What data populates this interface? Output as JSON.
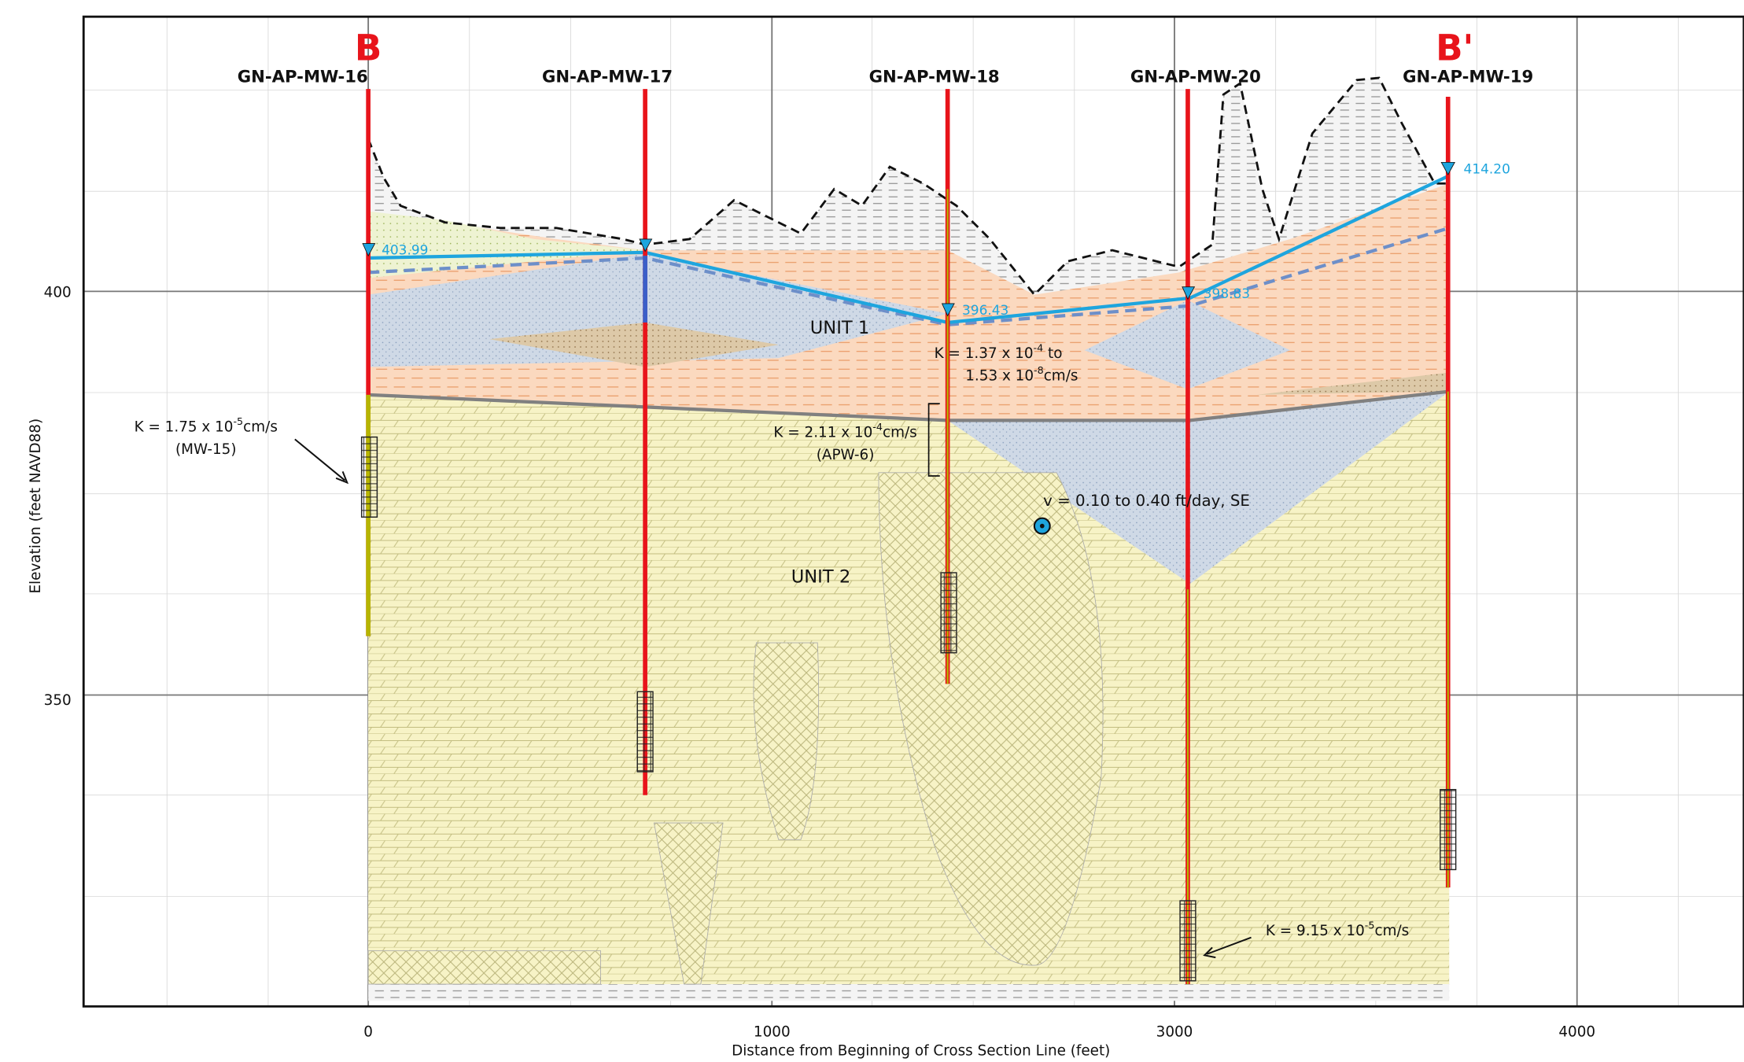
{
  "section": {
    "start_label": "B",
    "end_label": "B'"
  },
  "wells": [
    "GN-AP-MW-16",
    "GN-AP-MW-17",
    "GN-AP-MW-18",
    "GN-AP-MW-20",
    "GN-AP-MW-19"
  ],
  "water_levels": [
    "403.99",
    "396.43",
    "398.83",
    "414.20"
  ],
  "units": [
    "UNIT 1",
    "UNIT 2"
  ],
  "annotations": [
    {
      "lines": [
        [
          "K = 1.75  x 10",
          "-5",
          "cm/s"
        ],
        [
          "(MW-15)"
        ]
      ]
    },
    {
      "lines": [
        [
          "K = 1.37  x 10",
          "-4",
          " to"
        ],
        [
          "1.53  x 10",
          "-8",
          "cm/s"
        ]
      ]
    },
    {
      "lines": [
        [
          "K = 2.11  x 10",
          "-4",
          "cm/s"
        ],
        [
          "(APW-6)"
        ]
      ]
    },
    {
      "lines": [
        [
          "K = 9.15  x 10",
          "-5",
          "cm/s"
        ]
      ]
    }
  ],
  "velocity": "v = 0.10 to 0.40 ft/day, SE",
  "x_axis": {
    "label": "Distance from Beginning of Cross Section Line (feet)",
    "ticks": [
      0,
      1000,
      3000,
      4000
    ]
  },
  "y_axis": {
    "label": "Elevation (feet NAVD88)",
    "ticks": [
      400,
      350
    ]
  }
}
